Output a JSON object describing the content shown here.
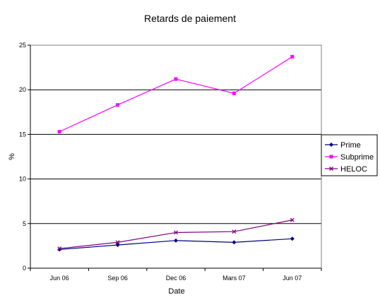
{
  "chart_data": {
    "type": "line",
    "title": "Retards de paiement",
    "xlabel": "Date",
    "ylabel": "%",
    "categories": [
      "Jun 06",
      "Sep 06",
      "Dec 06",
      "Mars 07",
      "Jun 07"
    ],
    "ylim": [
      0,
      25
    ],
    "yticks": [
      "0",
      "5",
      "10",
      "15",
      "20",
      "25"
    ],
    "grid": "horizontal",
    "legend_position": "right",
    "series": [
      {
        "name": "Prime",
        "color": "#000080",
        "marker": "diamond",
        "values": [
          2.1,
          2.6,
          3.1,
          2.9,
          3.3
        ]
      },
      {
        "name": "Subprime",
        "color": "#ff00ff",
        "marker": "square",
        "values": [
          15.3,
          18.3,
          21.2,
          19.6,
          23.7
        ]
      },
      {
        "name": "HELOC",
        "color": "#800080",
        "marker": "x",
        "values": [
          2.2,
          2.9,
          4.0,
          4.1,
          5.4
        ]
      }
    ]
  }
}
